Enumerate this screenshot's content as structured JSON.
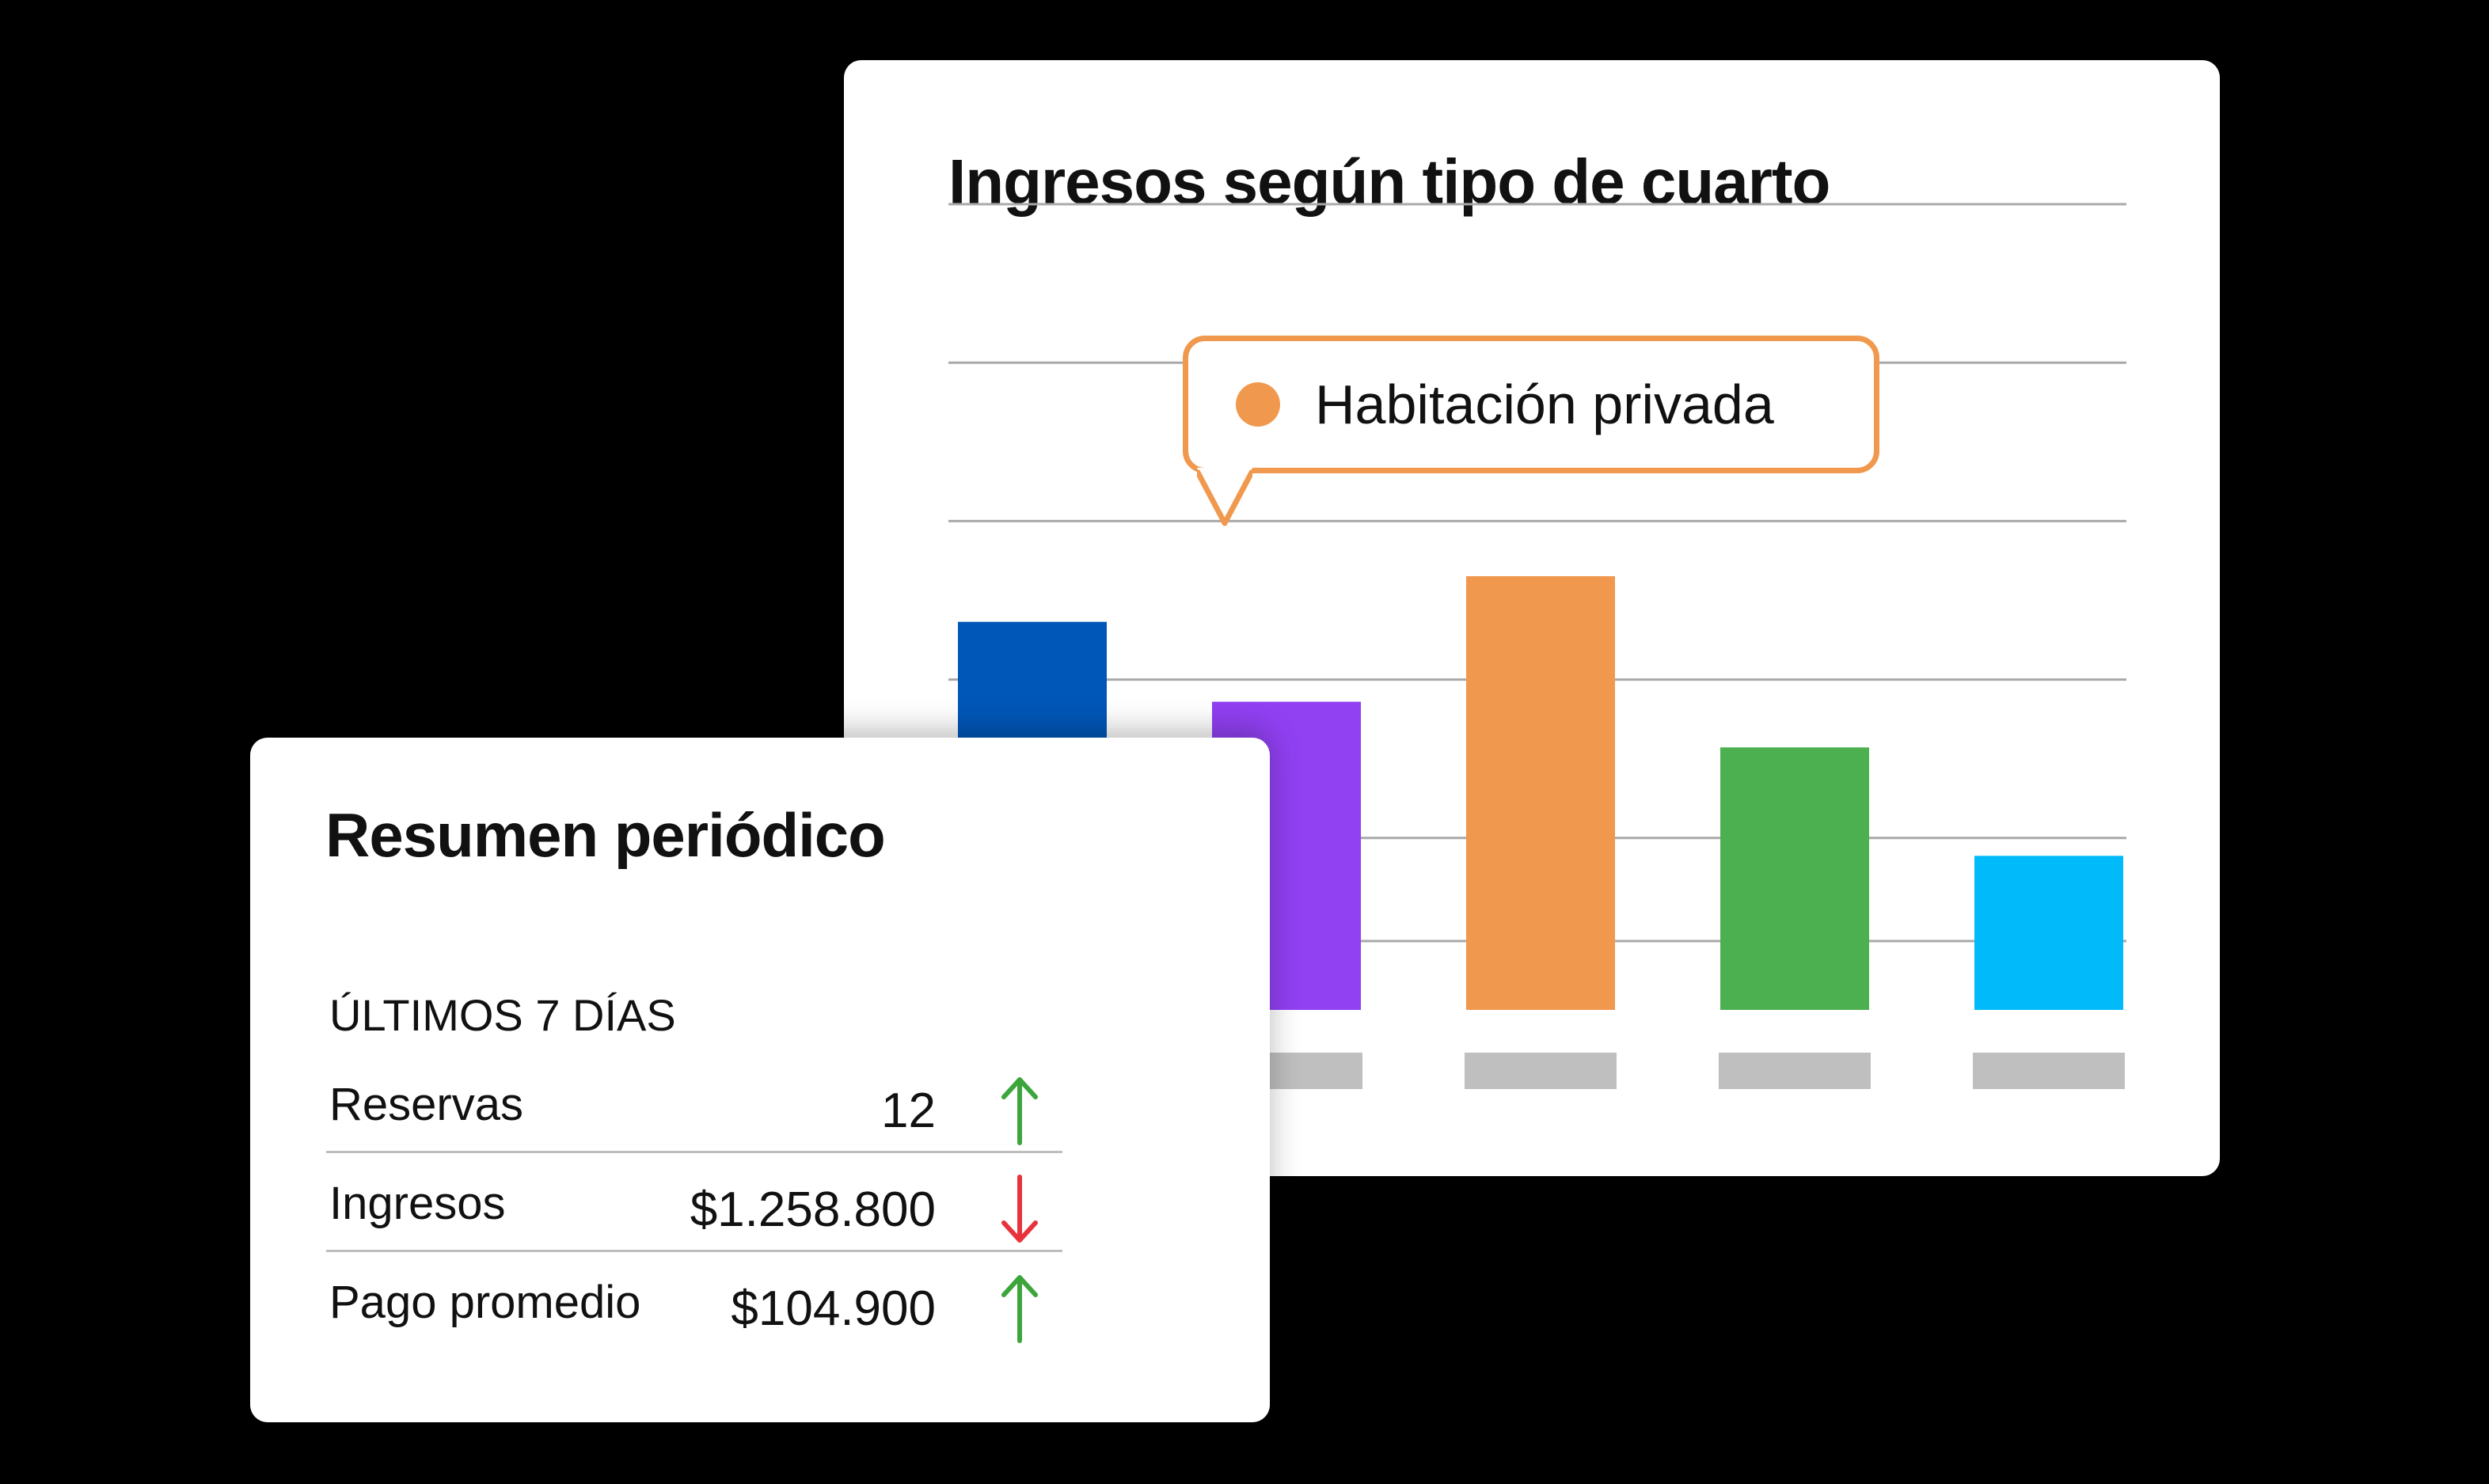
{
  "chart_card": {
    "title": "Ingresos según tipo de cuarto",
    "tooltip": {
      "label": "Habitación privada",
      "color": "#F0994E"
    }
  },
  "chart_data": {
    "type": "bar",
    "title": "Ingresos según tipo de cuarto",
    "categories": [
      "",
      "",
      "",
      "",
      ""
    ],
    "values": [
      3.4,
      2.7,
      3.8,
      2.3,
      1.35
    ],
    "colors": [
      "#0057B8",
      "#9140F2",
      "#F0994E",
      "#4CB050",
      "#00BAF9"
    ],
    "highlighted_index": 2,
    "highlighted_label": "Habitación privada",
    "ylim": [
      0,
      5
    ],
    "gridlines": [
      0,
      1,
      2,
      3,
      4,
      5
    ],
    "grid": true,
    "legend": "none"
  },
  "summary_card": {
    "title": "Resumen periódico",
    "period": "ÚLTIMOS 7 DÍAS",
    "metrics": [
      {
        "label": "Reservas",
        "value": "12",
        "trend": "up",
        "trend_icon": "arrow-up-icon",
        "trend_color": "#3CA53C"
      },
      {
        "label": "Ingresos",
        "value": "$1.258.800",
        "trend": "down",
        "trend_icon": "arrow-down-icon",
        "trend_color": "#E8323C"
      },
      {
        "label": "Pago promedio",
        "value": "$104.900",
        "trend": "up",
        "trend_icon": "arrow-up-icon",
        "trend_color": "#3CA53C"
      }
    ]
  }
}
